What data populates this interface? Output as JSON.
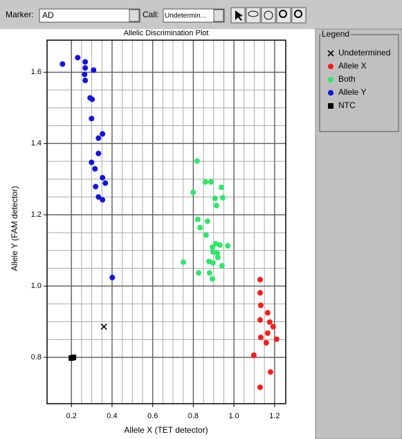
{
  "toolbar": {
    "marker_label": "Marker:",
    "marker_value": "AD",
    "call_label": "Call:",
    "call_value": "Undetermin..."
  },
  "legend_title": "Legend",
  "chart_data": {
    "type": "scatter",
    "title": "Allelic Discrimination Plot",
    "x_label": "Allele X (TET detector)",
    "y_label": "Allele Y (FAM detector)",
    "xlim": [
      0.08,
      1.255
    ],
    "ylim": [
      0.67,
      1.69
    ],
    "xticks": [
      0.2,
      0.4,
      0.6,
      0.8,
      {
        "value": 1,
        "label": "1.0"
      },
      1.2
    ],
    "yticks": [
      0.8,
      {
        "value": 1,
        "label": "1.0"
      },
      1.2,
      1.4,
      1.6
    ],
    "grid": true,
    "series": [
      {
        "name": "Undetermined",
        "color": "#000000",
        "marker": "x",
        "x": [
          0.36
        ],
        "y": [
          0.886
        ]
      },
      {
        "name": "Allele X",
        "color": "#ff1a1a",
        "marker": "circle",
        "x": [
          1.129,
          1.129,
          1.132,
          1.166,
          1.129,
          1.176,
          1.193,
          1.166,
          1.132,
          1.21,
          1.159,
          1.098,
          1.18,
          1.129
        ],
        "y": [
          1.018,
          0.981,
          0.946,
          0.925,
          0.905,
          0.899,
          0.886,
          0.868,
          0.856,
          0.851,
          0.841,
          0.806,
          0.759,
          0.716
        ]
      },
      {
        "name": "Both",
        "color": "#2ee86a",
        "marker": "circle",
        "x": [
          0.819,
          0.86,
          0.887,
          0.938,
          0.799,
          0.945,
          0.907,
          0.914,
          0.822,
          0.87,
          0.833,
          0.863,
          0.911,
          0.969,
          0.931,
          0.894,
          0.897,
          0.918,
          0.921,
          0.751,
          0.877,
          0.897,
          0.941,
          0.826,
          0.88,
          0.894
        ],
        "y": [
          1.351,
          1.292,
          1.292,
          1.277,
          1.263,
          1.248,
          1.246,
          1.226,
          1.187,
          1.182,
          1.164,
          1.143,
          1.119,
          1.113,
          1.115,
          1.109,
          1.096,
          1.092,
          1.08,
          1.067,
          1.069,
          1.065,
          1.057,
          1.037,
          1.037,
          1.02
        ]
      },
      {
        "name": "Allele Y",
        "color": "#1414e0",
        "marker": "circle",
        "x": [
          0.156,
          0.231,
          0.268,
          0.268,
          0.309,
          0.265,
          0.268,
          0.292,
          0.302,
          0.299,
          0.353,
          0.333,
          0.333,
          0.299,
          0.316,
          0.353,
          0.367,
          0.319,
          0.333,
          0.353,
          0.401
        ],
        "y": [
          1.623,
          1.641,
          1.629,
          1.612,
          1.606,
          1.594,
          1.577,
          1.528,
          1.524,
          1.47,
          1.427,
          1.415,
          1.372,
          1.347,
          1.329,
          1.304,
          1.289,
          1.279,
          1.25,
          1.242,
          1.024
        ]
      },
      {
        "name": "NTC",
        "color": "#000000",
        "marker": "square",
        "x": [
          0.2,
          0.21
        ],
        "y": [
          0.798,
          0.8
        ]
      }
    ]
  }
}
